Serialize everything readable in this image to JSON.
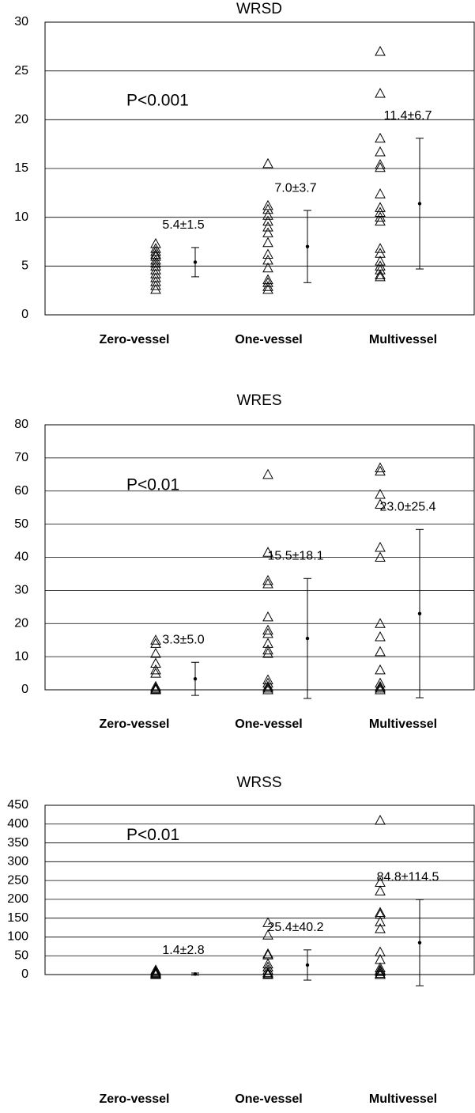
{
  "chart_data": [
    {
      "type": "scatter",
      "title": "WRSD",
      "annotation": "P<0.001",
      "categories": [
        "Zero-vessel",
        "One-vessel",
        "Multivessel"
      ],
      "ylim": [
        0,
        30
      ],
      "yticks": [
        0,
        5,
        10,
        15,
        20,
        25,
        30
      ],
      "grid": true,
      "color": "#000000",
      "groups": [
        {
          "values": [
            7.3,
            6.8,
            6.5,
            6.2,
            6.0,
            5.6,
            5.3,
            5.0,
            4.6,
            4.2,
            3.8,
            3.4,
            3.0,
            2.6
          ],
          "mean": 5.4,
          "error": 1.5,
          "label": "5.4±1.5"
        },
        {
          "values": [
            15.5,
            11.2,
            10.8,
            10.2,
            9.6,
            9.0,
            8.4,
            7.4,
            6.2,
            5.6,
            4.8,
            3.6,
            3.3,
            2.9,
            2.6
          ],
          "mean": 7.0,
          "error": 3.7,
          "label": "7.0±3.7"
        },
        {
          "values": [
            27.0,
            22.7,
            18.1,
            16.7,
            15.4,
            15.1,
            12.4,
            11.0,
            10.5,
            10.0,
            9.6,
            6.8,
            6.3,
            5.5,
            5.0,
            4.6,
            4.1,
            3.9
          ],
          "mean": 11.4,
          "error": 6.7,
          "label": "11.4±6.7"
        }
      ]
    },
    {
      "type": "scatter",
      "title": "WRES",
      "annotation": "P<0.01",
      "categories": [
        "Zero-vessel",
        "One-vessel",
        "Multivessel"
      ],
      "ylim": [
        0,
        80
      ],
      "yticks": [
        0,
        10,
        20,
        30,
        40,
        50,
        60,
        70,
        80
      ],
      "grid": true,
      "color": "#000000",
      "groups": [
        {
          "values": [
            15,
            14,
            11,
            8,
            6,
            5,
            1,
            0.5,
            0.2,
            0
          ],
          "mean": 3.3,
          "error": 5.0,
          "label": "3.3±5.0"
        },
        {
          "values": [
            65,
            41.5,
            33,
            32,
            22,
            18,
            17,
            14,
            12,
            11,
            3,
            2,
            1,
            0.5,
            0
          ],
          "mean": 15.5,
          "error": 18.1,
          "label": "15.5±18.1"
        },
        {
          "values": [
            67,
            66,
            59,
            56,
            43,
            40,
            20,
            16,
            11.5,
            6,
            2,
            1,
            0.5,
            0
          ],
          "mean": 23.0,
          "error": 25.4,
          "label": "23.0±25.4"
        }
      ]
    },
    {
      "type": "scatter",
      "title": "WRSS",
      "annotation": "P<0.01",
      "categories": [
        "Zero-vessel",
        "One-vessel",
        "Multivessel"
      ],
      "ylim": [
        0,
        450
      ],
      "yticks": [
        0,
        50,
        100,
        150,
        200,
        250,
        300,
        350,
        400,
        450
      ],
      "grid": true,
      "color": "#000000",
      "groups": [
        {
          "values": [
            12,
            8,
            5,
            3,
            1,
            0
          ],
          "mean": 1.4,
          "error": 2.8,
          "label": "1.4±2.8"
        },
        {
          "values": [
            138,
            105,
            55,
            52,
            28,
            20,
            12,
            5,
            2,
            0
          ],
          "mean": 25.4,
          "error": 40.2,
          "label": "25.4±40.2"
        },
        {
          "values": [
            410,
            245,
            222,
            165,
            160,
            140,
            122,
            60,
            40,
            18,
            12,
            8,
            3,
            0
          ],
          "mean": 84.8,
          "error": 114.5,
          "label": "84.8±114.5"
        }
      ]
    }
  ]
}
